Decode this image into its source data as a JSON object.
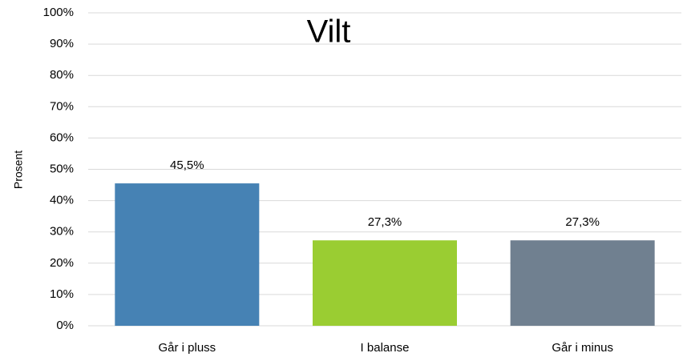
{
  "chart_data": {
    "type": "bar",
    "title": "Vilt",
    "y_label": "Prosent",
    "categories": [
      "Går i pluss",
      "I balanse",
      "Går i minus"
    ],
    "values": [
      45.5,
      27.3,
      27.3
    ],
    "value_labels": [
      "45,5%",
      "27,3%",
      "27,3%"
    ],
    "colors": [
      "#4682b4",
      "#9acd32",
      "#708090"
    ],
    "ylim": [
      0,
      100
    ],
    "yticks": [
      {
        "value": 0,
        "label": "0%"
      },
      {
        "value": 10,
        "label": "10%"
      },
      {
        "value": 20,
        "label": "20%"
      },
      {
        "value": 30,
        "label": "30%"
      },
      {
        "value": 40,
        "label": "40%"
      },
      {
        "value": 50,
        "label": "50%"
      },
      {
        "value": 60,
        "label": "60%"
      },
      {
        "value": 70,
        "label": "70%"
      },
      {
        "value": 80,
        "label": "80%"
      },
      {
        "value": 90,
        "label": "90%"
      },
      {
        "value": 100,
        "label": "100%"
      }
    ],
    "grid": true
  }
}
